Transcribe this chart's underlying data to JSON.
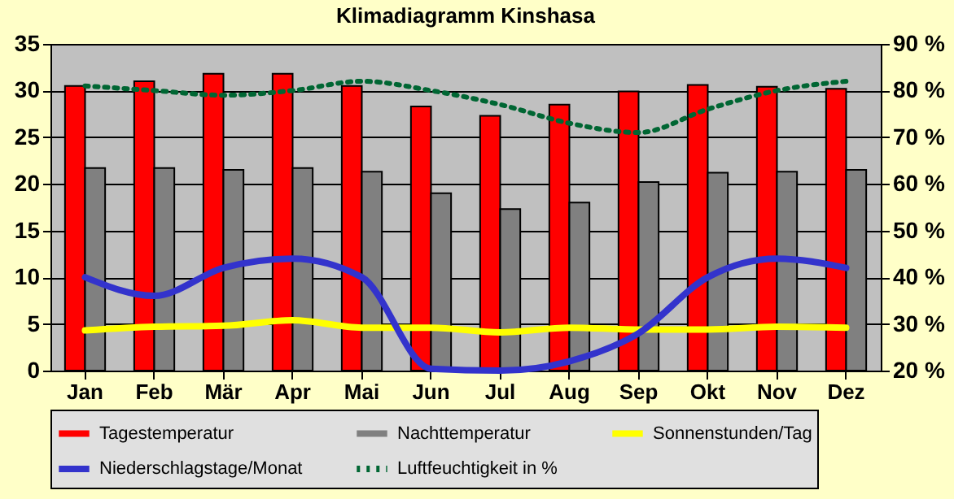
{
  "chart_data": {
    "type": "bar",
    "title": "Klimadiagramm Kinshasa",
    "categories": [
      "Jan",
      "Feb",
      "Mär",
      "Apr",
      "Mai",
      "Jun",
      "Jul",
      "Aug",
      "Sep",
      "Okt",
      "Nov",
      "Dez"
    ],
    "ylim": [
      0,
      35
    ],
    "yticks": [
      0,
      5,
      10,
      15,
      20,
      25,
      30,
      35
    ],
    "y2lim": [
      20,
      90
    ],
    "y2ticks": [
      {
        "value": 20,
        "label": "20 %"
      },
      {
        "value": 30,
        "label": "30 %"
      },
      {
        "value": 40,
        "label": "40 %"
      },
      {
        "value": 50,
        "label": "50 %"
      },
      {
        "value": 60,
        "label": "60 %"
      },
      {
        "value": 70,
        "label": "70 %"
      },
      {
        "value": 80,
        "label": "80 %"
      },
      {
        "value": 90,
        "label": "90 %"
      }
    ],
    "grid": "y",
    "legend": "bottom",
    "series": [
      {
        "name": "Tagestemperatur",
        "color": "#ff0000",
        "values": [
          30.5,
          31,
          31.8,
          31.8,
          30.5,
          28.3,
          27.3,
          28.5,
          29.9,
          30.6,
          30.4,
          30.2
        ]
      },
      {
        "name": "Nachttemperatur",
        "color": "#808080",
        "values": [
          21.7,
          21.7,
          21.5,
          21.7,
          21.3,
          19,
          17.3,
          18,
          20.2,
          21.2,
          21.3,
          21.5
        ]
      },
      {
        "name": "Sonnenstunden/Tag",
        "type": "line",
        "color": "#ffff00",
        "values": [
          4.3,
          4.7,
          4.8,
          5.4,
          4.6,
          4.6,
          4.1,
          4.6,
          4.4,
          4.4,
          4.7,
          4.6
        ]
      },
      {
        "name": "Niederschlagstage/Monat",
        "type": "line",
        "color": "#3333cc",
        "values": [
          10,
          8,
          11,
          12,
          10,
          0.2,
          0,
          1,
          4,
          10,
          12,
          11
        ]
      },
      {
        "name": "Luftfeuchtigkeit in %",
        "type": "line",
        "axis": "y2",
        "line_style": "dotted",
        "color": "#006633",
        "values": [
          81,
          80,
          79,
          80,
          82,
          80,
          77,
          73,
          71,
          76,
          80,
          82
        ]
      }
    ]
  }
}
